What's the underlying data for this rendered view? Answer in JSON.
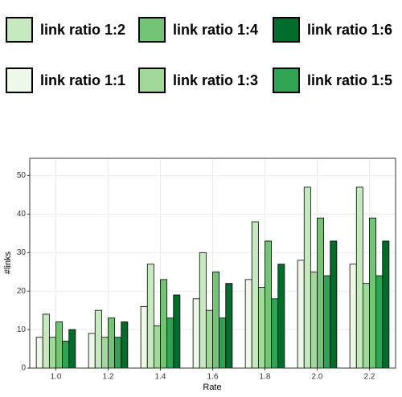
{
  "chart_data": {
    "type": "bar",
    "x_label": "Rate",
    "y_label": "#links",
    "categories": [
      "1.0",
      "1.2",
      "1.4",
      "1.6",
      "1.8",
      "2.0",
      "2.2"
    ],
    "series": [
      {
        "name": "link ratio 1:1",
        "color": "#edf8e9",
        "values": [
          8,
          9,
          16,
          18,
          23,
          28,
          27
        ]
      },
      {
        "name": "link ratio 1:2",
        "color": "#c7e9c0",
        "values": [
          14,
          15,
          27,
          30,
          38,
          47,
          47
        ]
      },
      {
        "name": "link ratio 1:3",
        "color": "#a1d99b",
        "values": [
          8,
          8,
          11,
          15,
          21,
          25,
          22
        ]
      },
      {
        "name": "link ratio 1:4",
        "color": "#74c476",
        "values": [
          12,
          13,
          23,
          25,
          33,
          39,
          39
        ]
      },
      {
        "name": "link ratio 1:5",
        "color": "#31a354",
        "values": [
          7,
          8,
          13,
          13,
          18,
          24,
          24
        ]
      },
      {
        "name": "link ratio 1:6",
        "color": "#006d2c",
        "values": [
          10,
          12,
          19,
          22,
          27,
          33,
          33
        ]
      }
    ],
    "ylim": [
      0,
      54.5
    ],
    "yticks": [
      0,
      10,
      20,
      30,
      40,
      50
    ],
    "grid": true,
    "legend": "top"
  }
}
